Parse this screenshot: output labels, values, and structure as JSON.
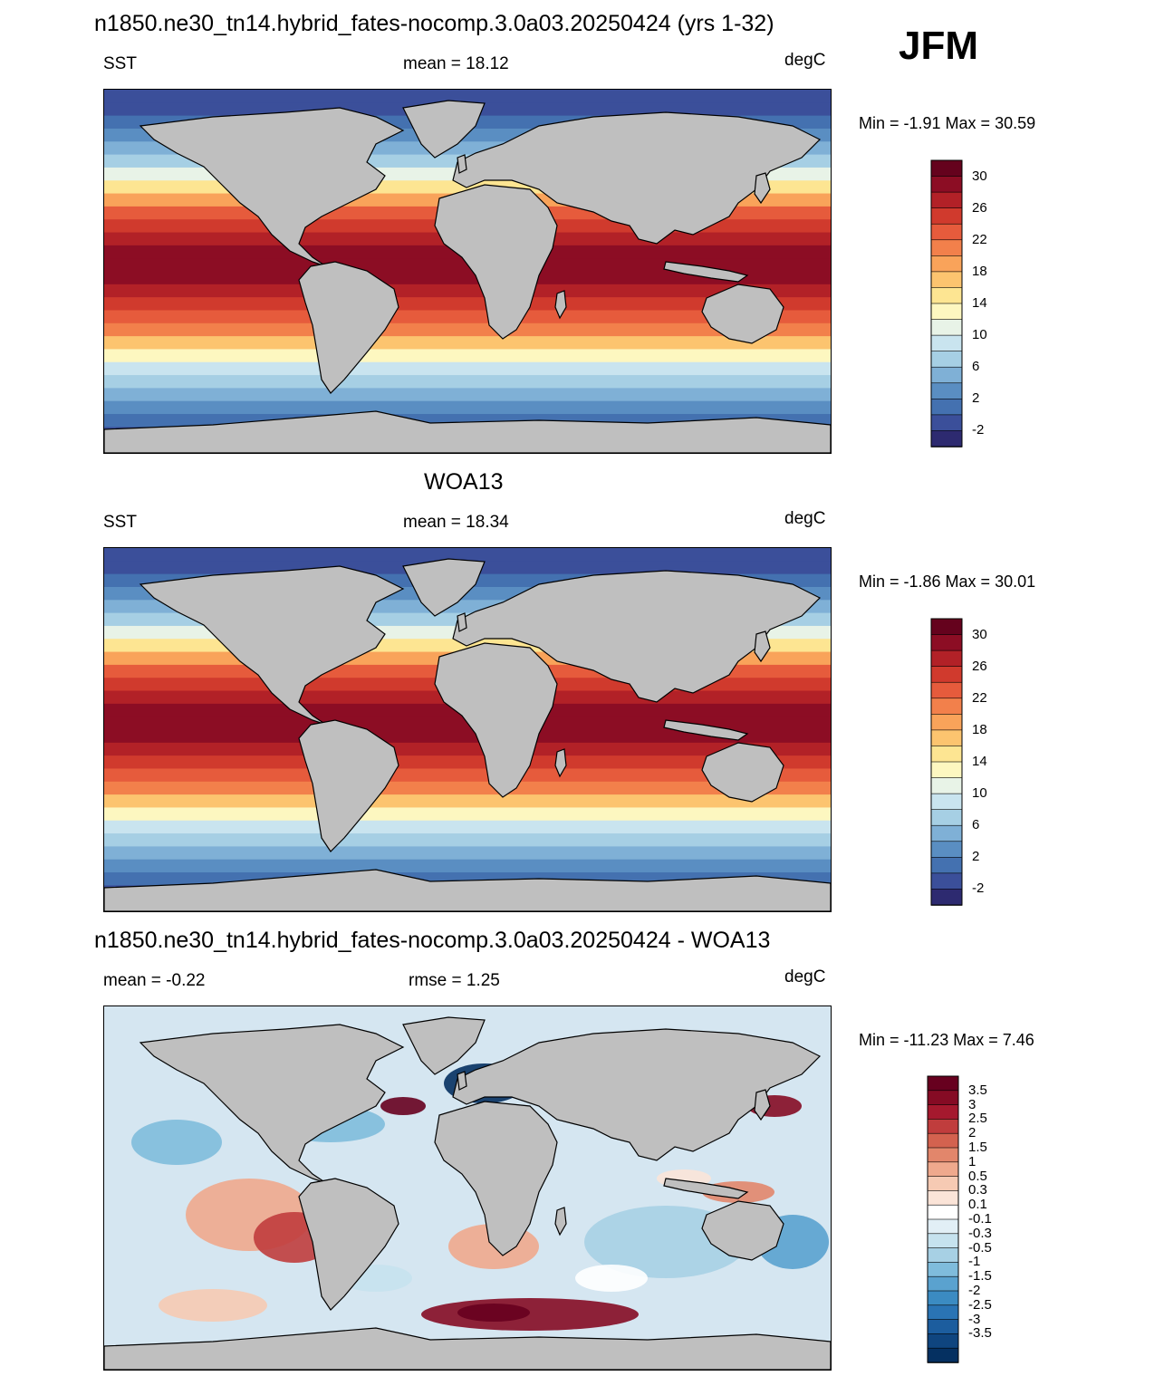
{
  "season": "JFM",
  "color_scales": {
    "sst_colors": [
      "#2d2a70",
      "#3b4f9a",
      "#4471b0",
      "#5a8ec2",
      "#7fb0d6",
      "#a6cfe4",
      "#c9e4ef",
      "#e8f3e7",
      "#fdf7c0",
      "#fde592",
      "#fcc46f",
      "#f9a35a",
      "#f2804b",
      "#e65b3c",
      "#d03a2d",
      "#b22127",
      "#8c0d24",
      "#65021d"
    ],
    "sst_labels": [
      "30",
      "26",
      "22",
      "18",
      "14",
      "10",
      "6",
      "2",
      "-2"
    ],
    "diff_colors": [
      "#053061",
      "#0f457f",
      "#1c5d9e",
      "#2a74b4",
      "#3b8bc2",
      "#5aa2cf",
      "#7fbcdc",
      "#a7d0e4",
      "#c6e2ee",
      "#e2eff6",
      "#ffffff",
      "#fbe4d8",
      "#f6cab3",
      "#efa98d",
      "#e2866b",
      "#d3624f",
      "#c03d3d",
      "#a5192e",
      "#850b24",
      "#67001f"
    ],
    "diff_labels": [
      "3.5",
      "3",
      "2.5",
      "2",
      "1.5",
      "1",
      "0.5",
      "0.3",
      "0.1",
      "-0.1",
      "-0.3",
      "-0.5",
      "-1",
      "-1.5",
      "-2",
      "-2.5",
      "-3",
      "-3.5"
    ],
    "land": "#bfbfbf"
  },
  "panels": [
    {
      "title": "n1850.ne30_tn14.hybrid_fates-nocomp.3.0a03.20250424 (yrs 1-32)",
      "left": "SST",
      "center": "mean =  18.12",
      "right": "degC",
      "minmax": "Min =  -1.91 Max =  30.59",
      "kind": "sst"
    },
    {
      "title": "WOA13",
      "left": "SST",
      "center": "mean =  18.34",
      "right": "degC",
      "minmax": "Min =  -1.86 Max =  30.01",
      "kind": "sst"
    },
    {
      "title": "n1850.ne30_tn14.hybrid_fates-nocomp.3.0a03.20250424 - WOA13",
      "left": "mean =  -0.22",
      "center": "rmse =   1.25",
      "right": "degC",
      "minmax": "Min = -11.23 Max =   7.46",
      "kind": "diff"
    }
  ]
}
